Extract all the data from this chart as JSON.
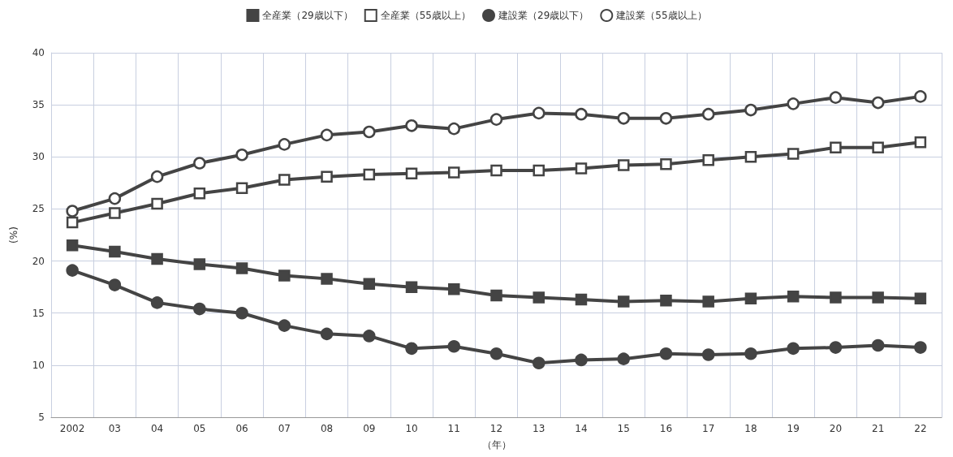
{
  "chart_data": {
    "type": "line",
    "xlabel": "（年）",
    "ylabel": "(%)",
    "categories": [
      "2002",
      "03",
      "04",
      "05",
      "06",
      "07",
      "08",
      "09",
      "10",
      "11",
      "12",
      "13",
      "14",
      "15",
      "16",
      "17",
      "18",
      "19",
      "20",
      "21",
      "22"
    ],
    "series": [
      {
        "name": "全産業（29歳以下）",
        "color": "#444444",
        "marker": "square",
        "values": [
          21.5,
          20.9,
          20.2,
          19.7,
          19.3,
          18.6,
          18.3,
          17.8,
          17.5,
          17.3,
          16.7,
          16.5,
          16.3,
          16.1,
          16.2,
          16.1,
          16.4,
          16.6,
          16.5,
          16.5,
          16.4
        ]
      },
      {
        "name": "全産業（55歳以上）",
        "color": "#444444",
        "marker": "square",
        "values": [
          23.7,
          24.6,
          25.5,
          26.5,
          27.0,
          27.8,
          28.1,
          28.3,
          28.4,
          28.5,
          28.7,
          28.7,
          28.9,
          29.2,
          29.3,
          29.7,
          30.0,
          30.3,
          30.9,
          30.9,
          31.4
        ]
      },
      {
        "name": "建設業（29歳以下）",
        "color": "#444444",
        "marker": "circle",
        "values": [
          19.1,
          17.7,
          16.0,
          15.4,
          15.0,
          13.8,
          13.0,
          12.8,
          11.6,
          11.8,
          11.1,
          10.2,
          10.5,
          10.6,
          11.1,
          11.0,
          11.1,
          11.6,
          11.7,
          11.9,
          11.7
        ]
      },
      {
        "name": "建設業（55歳以上）",
        "color": "#444444",
        "marker": "circle",
        "values": [
          24.8,
          26.0,
          28.1,
          29.4,
          30.2,
          31.2,
          32.1,
          32.4,
          33.0,
          32.7,
          33.6,
          34.2,
          34.1,
          33.7,
          33.7,
          34.1,
          34.5,
          35.1,
          35.7,
          35.2,
          35.8
        ]
      }
    ],
    "ylim": [
      5,
      40
    ],
    "yticks": [
      5,
      10,
      15,
      20,
      25,
      30,
      35,
      40
    ],
    "grid": true,
    "legend": "top",
    "line_style": "solid"
  }
}
